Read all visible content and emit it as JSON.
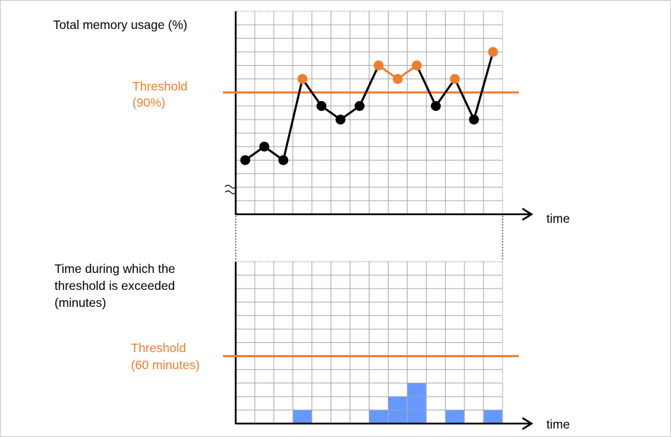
{
  "colors": {
    "threshold": "#ED7D31",
    "point_below": "#000000",
    "point_above": "#ED7D31",
    "bar": "#6699FF",
    "grid": "#A6A6A6"
  },
  "top_chart": {
    "ylabel": "Total memory usage (%)",
    "threshold_label_1": "Threshold",
    "threshold_label_2": "(90%)",
    "xlabel": "time"
  },
  "bottom_chart": {
    "ylabel_1": "Time during which the",
    "ylabel_2": "threshold is exceeded",
    "ylabel_3": "(minutes)",
    "threshold_label_1": "Threshold",
    "threshold_label_2": "(60 minutes)",
    "xlabel": "time"
  },
  "chart_data": [
    {
      "type": "line",
      "ylabel": "Total memory usage (%)",
      "xlabel": "time",
      "axis_break": true,
      "grid": true,
      "grid_rows": 15,
      "grid_cols": 14,
      "threshold_level": 9,
      "values": [
        4,
        5,
        4,
        10,
        8,
        7,
        8,
        11,
        10,
        11,
        8,
        10,
        7,
        12
      ]
    },
    {
      "type": "bar",
      "ylabel": "Time during which the threshold is exceeded (minutes)",
      "xlabel": "time",
      "grid": true,
      "grid_rows": 12,
      "grid_cols": 14,
      "threshold_level": 5,
      "values": [
        0,
        0,
        0,
        1,
        0,
        0,
        0,
        1,
        2,
        3,
        0,
        1,
        0,
        1
      ]
    }
  ]
}
